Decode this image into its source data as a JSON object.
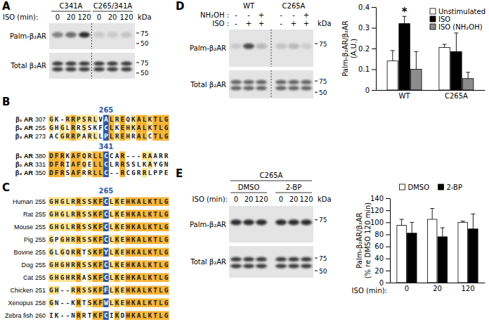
{
  "chart_data": [
    {
      "type": "bar",
      "categories": [
        "WT",
        "C265A"
      ],
      "series": [
        {
          "name": "Unstimulated",
          "color": "#ffffff",
          "values": [
            0.14,
            0.205
          ],
          "errors": [
            0.05,
            0.015
          ]
        },
        {
          "name": "ISO",
          "color": "#000000",
          "values": [
            0.32,
            0.185
          ],
          "errors": [
            0.035,
            0.09
          ]
        },
        {
          "name": "ISO (NH₂OH)",
          "color": "#8c8c8c",
          "values": [
            0.1,
            0.055
          ],
          "errors": [
            0.085,
            0.03
          ]
        }
      ],
      "ylabel": "Palm-β₂AR/β₂AR (A.U.)",
      "ylim": [
        0,
        0.4
      ],
      "yticks": [
        0,
        0.1,
        0.2,
        0.3,
        0.4
      ],
      "legend": "top-right",
      "annotations": [
        {
          "text": "*",
          "category": "WT",
          "series": "ISO"
        }
      ]
    },
    {
      "type": "bar",
      "categories": [
        0,
        20,
        120
      ],
      "xlabel": "ISO (min):",
      "series": [
        {
          "name": "DMSO",
          "color": "#ffffff",
          "values": [
            95,
            105,
            100
          ],
          "errors": [
            10,
            18,
            2
          ]
        },
        {
          "name": "2-BP",
          "color": "#000000",
          "values": [
            82,
            76,
            89
          ],
          "errors": [
            18,
            15,
            25
          ]
        }
      ],
      "ylabel": "Palm-β₂AR/β₂AR (% re DMSO 120 min)",
      "ylim": [
        0,
        140
      ],
      "yticks": [
        0,
        20,
        40,
        60,
        80,
        100,
        120,
        140
      ],
      "legend": "top"
    }
  ],
  "panels": {
    "A": {
      "label": "A",
      "groups": [
        "C341A",
        "C265/341A"
      ],
      "lane_title": "ISO (min):",
      "lanes": [
        0,
        20,
        120,
        0,
        20,
        120
      ],
      "unit": "kDa",
      "blots": [
        {
          "label": "Palm-β₂AR",
          "markers": [
            75,
            50
          ]
        },
        {
          "label": "Total β₂AR",
          "markers": [
            75,
            50
          ]
        }
      ]
    },
    "B": {
      "label": "B",
      "blocks": [
        {
          "marker": 265,
          "rows": [
            {
              "name": "β₁ AR",
              "start": 307,
              "sequence": "GK-RRPSRLVALREQKALKTLG"
            },
            {
              "name": "β₂ AR",
              "start": 255,
              "sequence": "GHGLRRSSKFCLKEHKALKTLG"
            },
            {
              "name": "β₃ AR",
              "start": 273,
              "sequence": "ACGRRPARLLPLREHRALCTLG"
            }
          ]
        },
        {
          "marker": 341,
          "rows": [
            {
              "name": "β₁ AR",
              "start": 380,
              "sequence": "DFRKAFQRLLCCAR---RAARR"
            },
            {
              "name": "β₂ AR",
              "start": 331,
              "sequence": "DFRIAFQELLCLRRSSLKAYGN"
            },
            {
              "name": "β₃ AR",
              "start": 350,
              "sequence": "DFRSAFRRLLC--RCGRRLPPE"
            }
          ]
        }
      ]
    },
    "C": {
      "label": "C",
      "marker": 265,
      "rows": [
        {
          "name": "Human",
          "start": 255,
          "sequence": "GHGLRRSSKFCLKEHKALKTLG"
        },
        {
          "name": "Rat",
          "start": 255,
          "sequence": "GHGLRRSSKFCLKEHKALKTLG"
        },
        {
          "name": "Mouse",
          "start": 255,
          "sequence": "GHGLRRSSKFCLKEHKALKTLG"
        },
        {
          "name": "Pig",
          "start": 255,
          "sequence": "GPGHRRSSKFCLKEHKALKTLG"
        },
        {
          "name": "Bovine",
          "start": 255,
          "sequence": "GLGQRRTSKFYLKEHKALKTLG"
        },
        {
          "name": "Dog",
          "start": 255,
          "sequence": "GHGHRRSSKFCLKEHKALKTLG"
        },
        {
          "name": "Cat",
          "start": 255,
          "sequence": "GHGHRRASKFCLKEHKALKTLG"
        },
        {
          "name": "Chicken",
          "start": 251,
          "sequence": "GH--RRSSKFFLKEHKALKTLG"
        },
        {
          "name": "Xenopus",
          "start": 258,
          "sequence": "GN--KRTSKFWLKEHKALKTLG"
        },
        {
          "name": "Zebra fish",
          "start": 260,
          "sequence": "IK--NRRTKFCIKDHKALKTLG"
        }
      ]
    },
    "D": {
      "label": "D",
      "groups": [
        "WT",
        "C265A"
      ],
      "conditions": [
        {
          "name": "NH₂OH :",
          "lanes": [
            "-",
            "-",
            "+",
            "-",
            "-",
            "+"
          ]
        },
        {
          "name": "ISO :",
          "lanes": [
            "-",
            "+",
            "+",
            "-",
            "+",
            "+"
          ]
        }
      ],
      "unit": "kDa",
      "blots": [
        {
          "label": "Palm-β₂AR",
          "markers": [
            75
          ]
        },
        {
          "label": "Total β₂AR",
          "markers": [
            75,
            50
          ]
        }
      ]
    },
    "E": {
      "label": "E",
      "group": "C265A",
      "groups": [
        "DMSO",
        "2-BP"
      ],
      "lane_title": "ISO (min):",
      "lanes": [
        0,
        20,
        120,
        0,
        20,
        120
      ],
      "unit": "kDa",
      "blots": [
        {
          "label": "Palm-β₂AR",
          "markers": [
            75
          ]
        },
        {
          "label": "Total β₂AR",
          "markers": [
            75,
            50
          ]
        }
      ]
    }
  }
}
